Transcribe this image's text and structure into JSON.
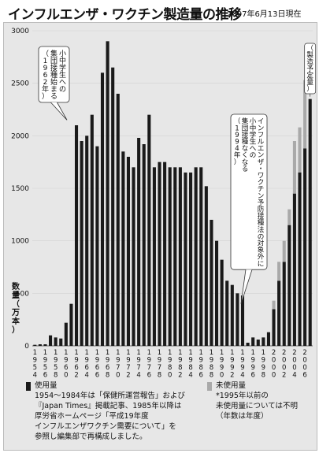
{
  "title": "インフルエンザ・ワクチン製造量の推移",
  "as_of": "2007年6月13日現在",
  "chart_data": {
    "type": "bar",
    "ylabel": "数量（万本）",
    "ylim": [
      0,
      3000
    ],
    "yticks": [
      0,
      500,
      1000,
      1500,
      2000,
      2500,
      3000
    ],
    "x_tick_labels": [
      "1954",
      "1956",
      "1958",
      "1960",
      "1962",
      "1964",
      "1966",
      "1968",
      "1970",
      "1972",
      "1974",
      "1976",
      "1978",
      "1980",
      "1982",
      "1984",
      "1986",
      "1988",
      "1990",
      "1992",
      "1994",
      "1996",
      "1998",
      "2000",
      "2002",
      "2004",
      "2006"
    ],
    "years": [
      1954,
      1955,
      1956,
      1957,
      1958,
      1959,
      1960,
      1961,
      1962,
      1963,
      1964,
      1965,
      1966,
      1967,
      1968,
      1969,
      1970,
      1971,
      1972,
      1973,
      1974,
      1975,
      1976,
      1977,
      1978,
      1979,
      1980,
      1981,
      1982,
      1983,
      1984,
      1985,
      1986,
      1987,
      1988,
      1989,
      1990,
      1991,
      1992,
      1993,
      1994,
      1995,
      1996,
      1997,
      1998,
      1999,
      2000,
      2001,
      2002,
      2003,
      2004,
      2005,
      2006,
      2007
    ],
    "series": [
      {
        "name": "使用量",
        "color": "#1a1a1a",
        "values": [
          10,
          15,
          15,
          100,
          80,
          70,
          220,
          400,
          2100,
          1950,
          2000,
          2200,
          1900,
          2600,
          2900,
          2650,
          2400,
          1850,
          1800,
          1700,
          1980,
          1920,
          2200,
          1700,
          1750,
          1750,
          1700,
          1700,
          1700,
          1650,
          1650,
          1700,
          1700,
          1520,
          1200,
          1000,
          820,
          620,
          580,
          500,
          480,
          30,
          80,
          60,
          80,
          130,
          350,
          620,
          800,
          1150,
          1450,
          1650,
          1880,
          2350
        ]
      },
      {
        "name": "未使用量",
        "color": "#a9a9a9",
        "values": [
          0,
          0,
          0,
          0,
          0,
          0,
          0,
          0,
          0,
          0,
          0,
          0,
          0,
          0,
          0,
          0,
          0,
          0,
          0,
          0,
          0,
          0,
          0,
          0,
          0,
          0,
          0,
          0,
          0,
          0,
          0,
          0,
          0,
          0,
          0,
          0,
          0,
          0,
          0,
          0,
          0,
          0,
          0,
          0,
          0,
          0,
          80,
          180,
          200,
          150,
          500,
          430,
          650,
          0
        ]
      }
    ],
    "annotations": [
      {
        "text": "小中学生への\n集団接種始まる\n（1962年）",
        "year": 1962
      },
      {
        "text": "インフルエンザ・ワクチン予防接種法の対象外に\n小中学生への\n集団接種なくなる\n（1994年）",
        "year": 1994
      },
      {
        "text": "（製造予定量）",
        "year": 2007
      }
    ]
  },
  "legend": {
    "used_label": "使用量",
    "used_note": "1954～1984年は「保健所運営報告」および\n『Japan Times』掲載記事、1985年以降は\n厚労省ホームページ「平成19年度\nインフルエンザワクチン需要について」を\n参照し編集部で再構成しました。",
    "unused_label": "未使用量",
    "unused_note": "*1995年以前の\n未使用量については不明\n（年数は年度）"
  }
}
